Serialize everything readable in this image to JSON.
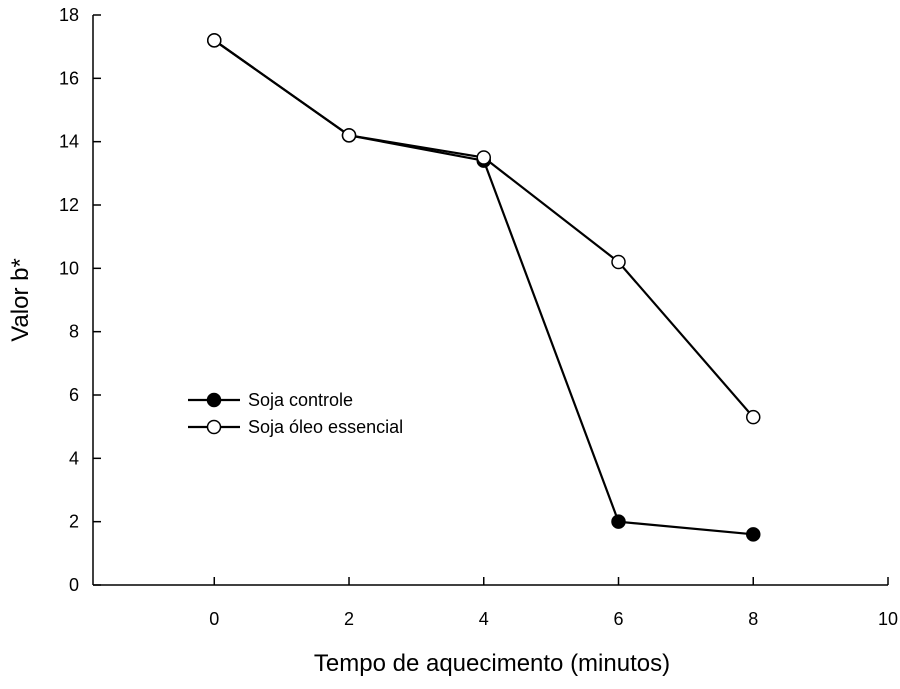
{
  "chart_data": {
    "type": "line",
    "xlabel": "Tempo de aquecimento (minutos)",
    "ylabel": "Valor b*",
    "xlim": [
      -1.8,
      10
    ],
    "ylim": [
      0,
      18
    ],
    "xticks": [
      0,
      2,
      4,
      6,
      8,
      10
    ],
    "yticks": [
      0,
      2,
      4,
      6,
      8,
      10,
      12,
      14,
      16,
      18
    ],
    "grid": false,
    "legend_position": "center-left",
    "series": [
      {
        "name": "Soja controle",
        "marker": "filled-circle",
        "color": "#000000",
        "x": [
          0,
          2,
          4,
          6,
          8
        ],
        "y": [
          17.2,
          14.2,
          13.4,
          2.0,
          1.6
        ]
      },
      {
        "name": "Soja óleo essencial",
        "marker": "open-circle",
        "color": "#000000",
        "x": [
          0,
          2,
          4,
          6,
          8
        ],
        "y": [
          17.2,
          14.2,
          13.5,
          10.2,
          5.3
        ]
      }
    ]
  }
}
